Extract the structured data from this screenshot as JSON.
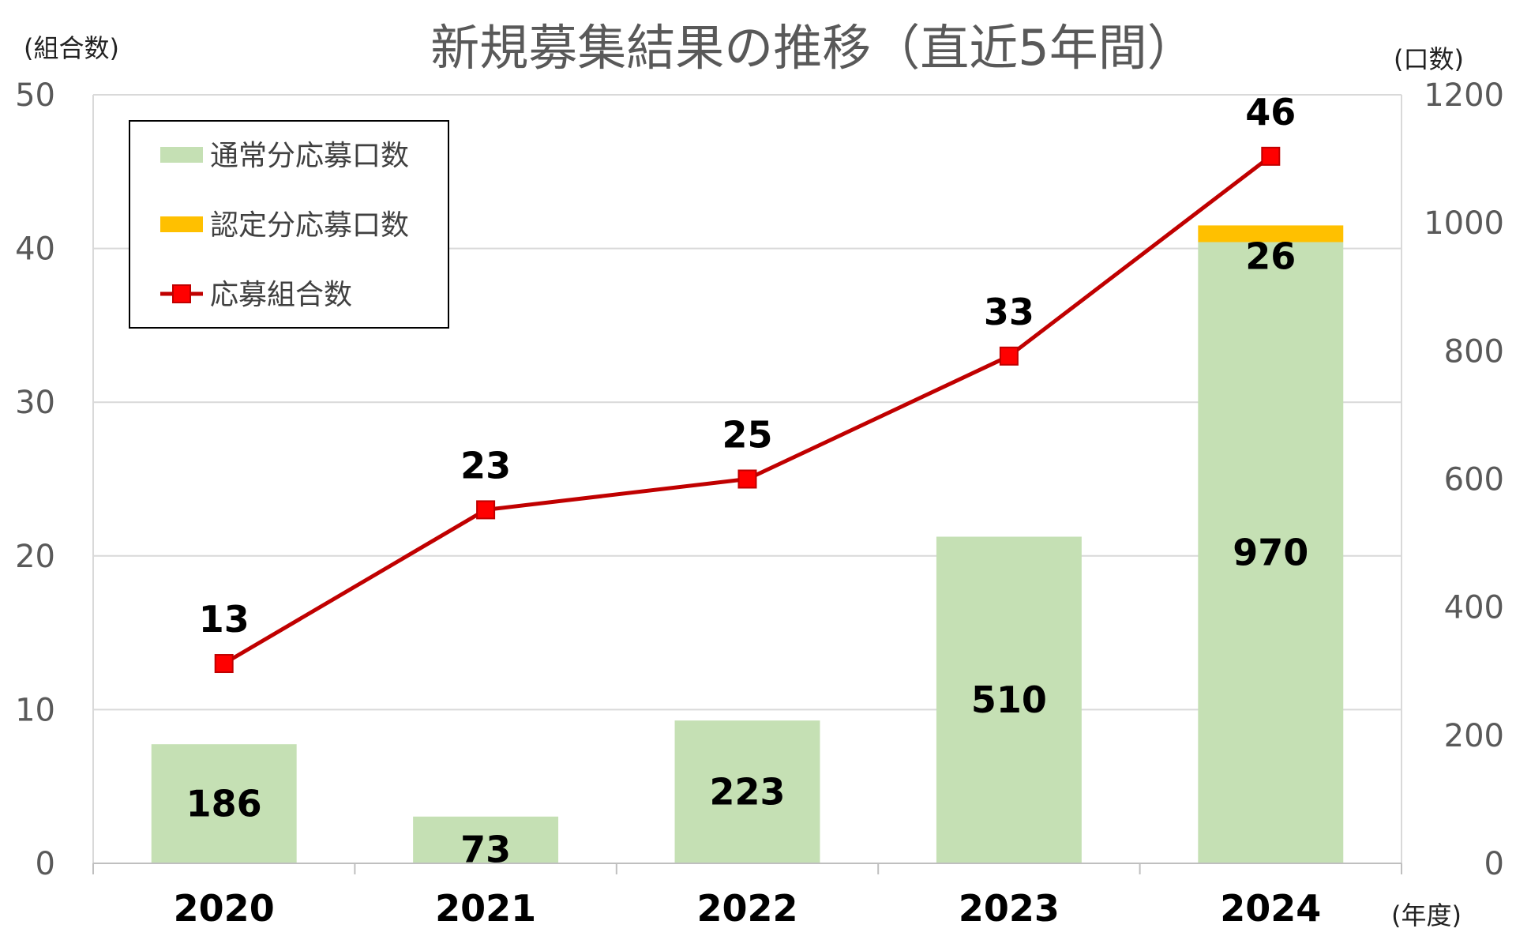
{
  "chart_data": {
    "type": "bar",
    "title": "新規募集結果の推移（直近5年間）",
    "categories": [
      "2020",
      "2021",
      "2022",
      "2023",
      "2024"
    ],
    "xlabel": "(年度)",
    "ylabel_left": "(組合数)",
    "ylabel_right": "(口数)",
    "ylim_left": [
      0,
      50
    ],
    "yticks_left": [
      0,
      10,
      20,
      30,
      40,
      50
    ],
    "ylim_right": [
      0,
      1200
    ],
    "yticks_right": [
      0,
      200,
      400,
      600,
      800,
      1000,
      1200
    ],
    "grid": true,
    "legend_placement": "top-left",
    "series": [
      {
        "name": "通常分応募口数",
        "kind": "bar",
        "axis": "right",
        "stack": "a",
        "color": "#c5e0b4",
        "values": [
          186,
          73,
          223,
          510,
          970
        ]
      },
      {
        "name": "認定分応募口数",
        "kind": "bar",
        "axis": "right",
        "stack": "a",
        "color": "#ffc000",
        "values": [
          0,
          0,
          0,
          0,
          26
        ]
      },
      {
        "name": "応募組合数",
        "kind": "line",
        "axis": "left",
        "color": "#c00000",
        "marker_color": "#ff0000",
        "values": [
          13,
          23,
          25,
          33,
          46
        ]
      }
    ]
  }
}
